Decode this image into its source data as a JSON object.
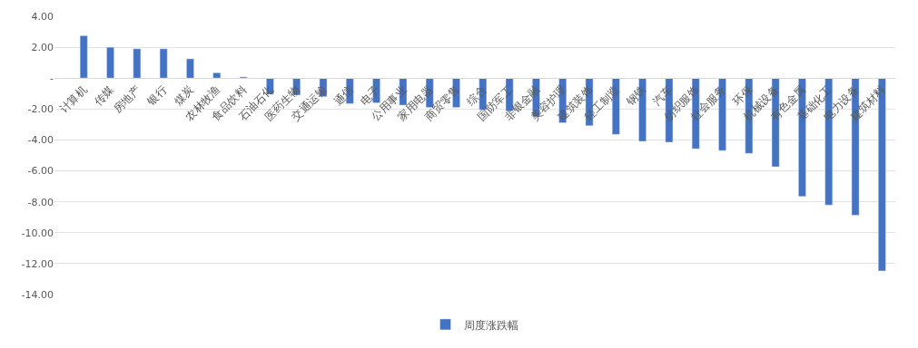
{
  "chart_data": {
    "type": "bar",
    "categories": [
      "计算机",
      "传媒",
      "房地产",
      "银行",
      "煤炭",
      "农林牧渔",
      "食品饮料",
      "石油石化",
      "医药生物",
      "交通运输",
      "通信",
      "电子",
      "公用事业",
      "家用电器",
      "商贸零售",
      "综合",
      "国防军工",
      "非银金融",
      "美容护理",
      "建筑装饰",
      "轻工制造",
      "钢铁",
      "汽车",
      "纺织服饰",
      "社会服务",
      "环保",
      "机械设备",
      "有色金属",
      "基础化工",
      "电力设备",
      "建筑材料"
    ],
    "series": [
      {
        "name": "周度涨跌幅",
        "color": "#4472c4",
        "values": [
          2.75,
          2.0,
          1.9,
          1.9,
          1.25,
          0.35,
          0.08,
          -1.05,
          -1.1,
          -1.2,
          -1.65,
          -1.6,
          -1.75,
          -1.9,
          -1.9,
          -2.05,
          -2.13,
          -2.5,
          -2.89,
          -3.08,
          -3.64,
          -4.09,
          -4.15,
          -4.57,
          -4.69,
          -4.87,
          -5.74,
          -7.66,
          -8.21,
          -8.87,
          -12.47
        ]
      }
    ],
    "ylim": [
      -14,
      4
    ],
    "yticks": [
      {
        "value": 4,
        "label": "4.00"
      },
      {
        "value": 2,
        "label": "2.00"
      },
      {
        "value": 0,
        "label": "-"
      },
      {
        "value": -2,
        "label": "-2.00"
      },
      {
        "value": -4,
        "label": "-4.00"
      },
      {
        "value": -6,
        "label": "-6.00"
      },
      {
        "value": -8,
        "label": "-8.00"
      },
      {
        "value": -10,
        "label": "-10.00"
      },
      {
        "value": -12,
        "label": "-12.00"
      },
      {
        "value": -14,
        "label": "-14.00"
      }
    ],
    "grid": "y",
    "legend": "bottom"
  }
}
